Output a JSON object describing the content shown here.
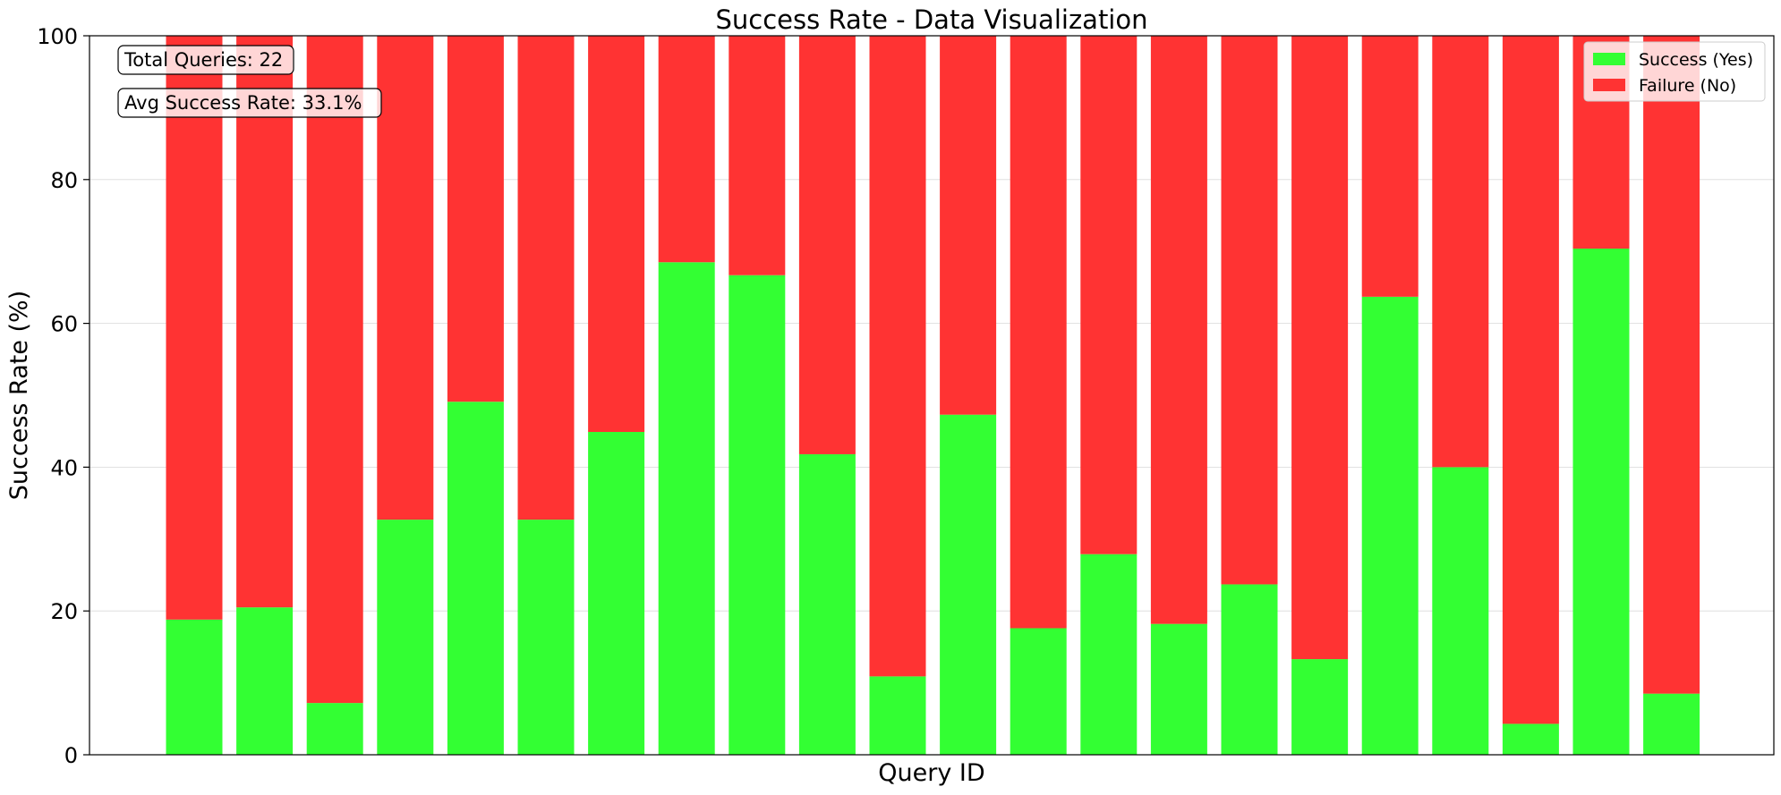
{
  "chart_data": {
    "type": "bar",
    "stacked": true,
    "title": "Success Rate - Data Visualization",
    "xlabel": "Query ID",
    "ylabel": "Success Rate (%)",
    "ylim": [
      0,
      100
    ],
    "yticks": [
      0,
      20,
      40,
      60,
      80,
      100
    ],
    "grid": true,
    "legend_position": "top-right",
    "series": [
      {
        "name": "Success (Yes)",
        "color": "#33ff33",
        "values": [
          18.8,
          20.5,
          7.2,
          32.7,
          49.1,
          32.7,
          44.9,
          68.5,
          66.7,
          41.8,
          10.9,
          47.3,
          17.6,
          27.9,
          18.2,
          23.7,
          13.3,
          63.7,
          40.0,
          4.3,
          70.4,
          8.5
        ]
      },
      {
        "name": "Failure (No)",
        "color": "#ff3333",
        "values": [
          81.2,
          79.5,
          92.8,
          67.3,
          50.9,
          67.3,
          55.1,
          31.5,
          33.3,
          58.2,
          89.1,
          52.7,
          82.4,
          72.1,
          81.8,
          76.3,
          86.7,
          36.3,
          60.0,
          95.7,
          29.6,
          91.5
        ]
      }
    ],
    "annotations": [
      "Total Queries: 22",
      "Avg Success Rate: 33.1%"
    ]
  }
}
